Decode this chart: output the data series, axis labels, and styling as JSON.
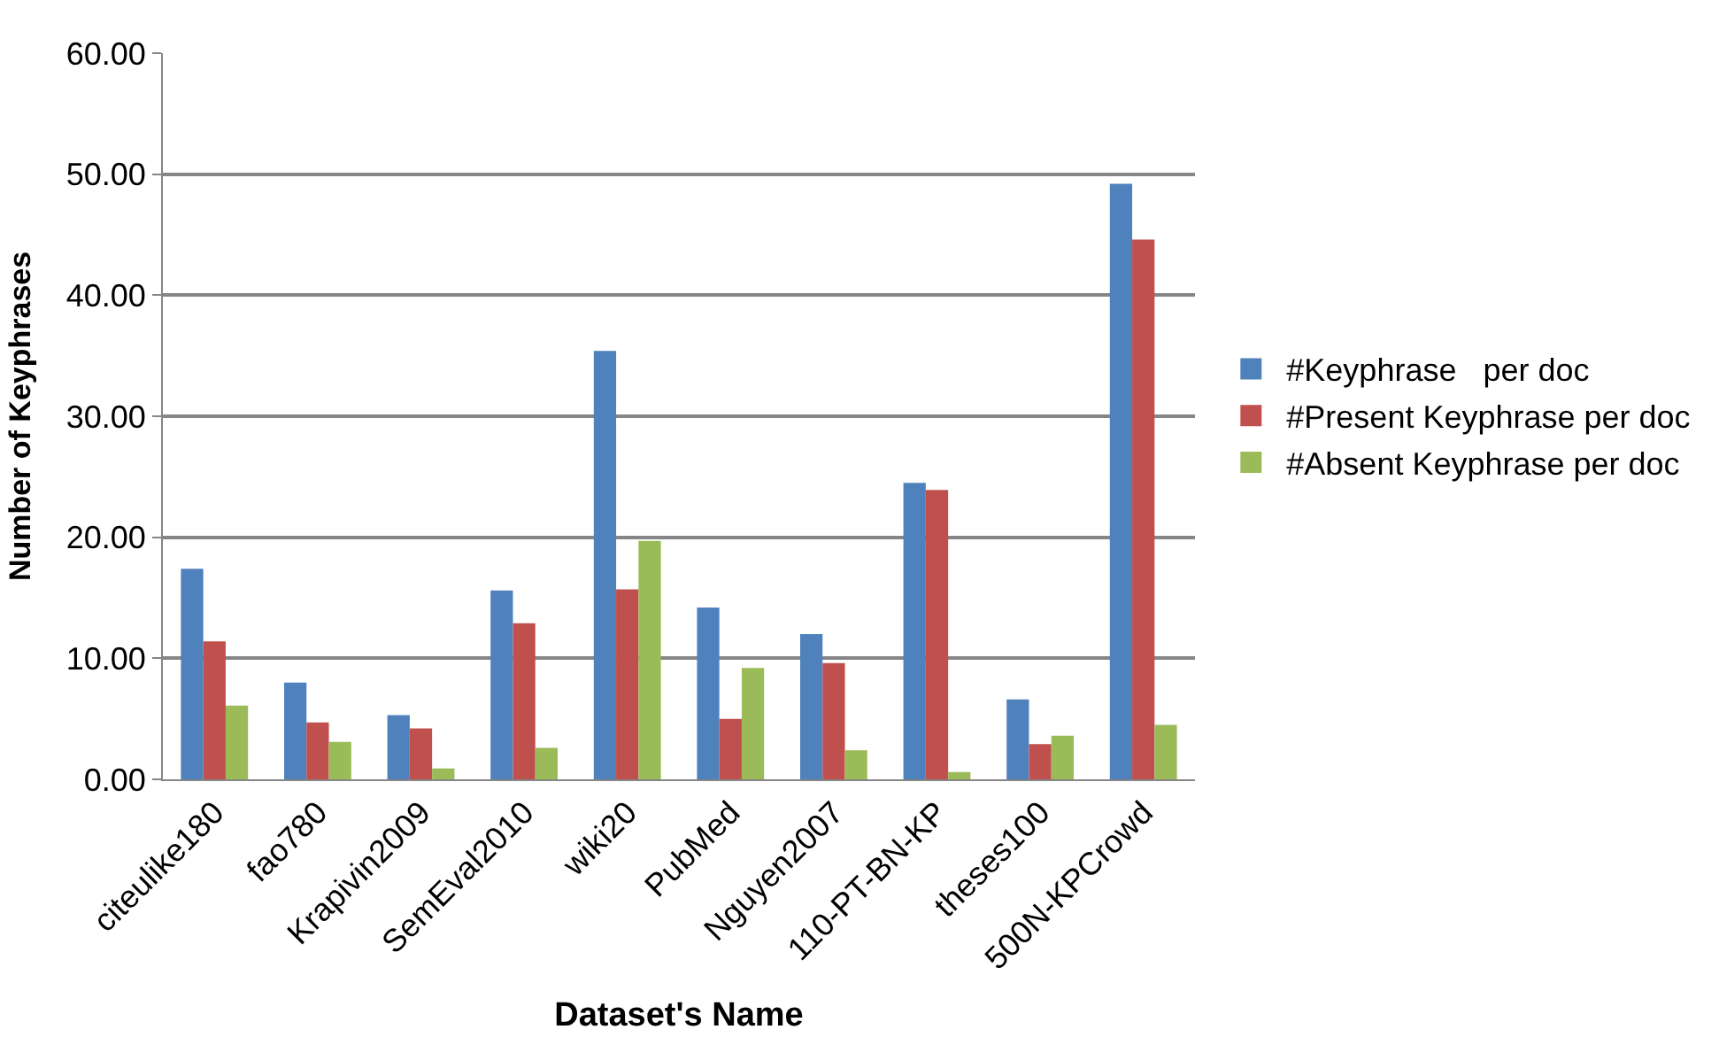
{
  "chart_data": {
    "type": "bar",
    "xlabel": "Dataset's Name",
    "ylabel": "Number of Keyphrases",
    "categories": [
      "citeulike180",
      "fao780",
      "Krapivin2009",
      "SemEval2010",
      "wiki20",
      "PubMed",
      "Nguyen2007",
      "110-PT-BN-KP",
      "theses100",
      "500N-KPCrowd"
    ],
    "series": [
      {
        "name": "#Keyphrase   per doc",
        "color": "#4f81bd",
        "values": [
          17.4,
          8.0,
          5.3,
          15.6,
          35.4,
          14.2,
          12.0,
          24.5,
          6.6,
          49.2
        ]
      },
      {
        "name": "#Present Keyphrase per doc",
        "color": "#c0504d",
        "values": [
          11.4,
          4.7,
          4.2,
          12.9,
          15.7,
          5.0,
          9.6,
          23.9,
          2.9,
          44.6
        ]
      },
      {
        "name": "#Absent Keyphrase per doc",
        "color": "#9bbb59",
        "values": [
          6.1,
          3.1,
          0.9,
          2.6,
          19.7,
          9.2,
          2.4,
          0.6,
          3.6,
          4.5
        ]
      }
    ],
    "ylim": [
      0,
      60
    ],
    "yticks": [
      {
        "value": 0,
        "label": "0.00"
      },
      {
        "value": 10,
        "label": "10.00"
      },
      {
        "value": 20,
        "label": "20.00"
      },
      {
        "value": 30,
        "label": "30.00"
      },
      {
        "value": 40,
        "label": "40.00"
      },
      {
        "value": 50,
        "label": "50.00"
      },
      {
        "value": 60,
        "label": "60.00"
      }
    ],
    "grid": "y",
    "legend": "right"
  }
}
